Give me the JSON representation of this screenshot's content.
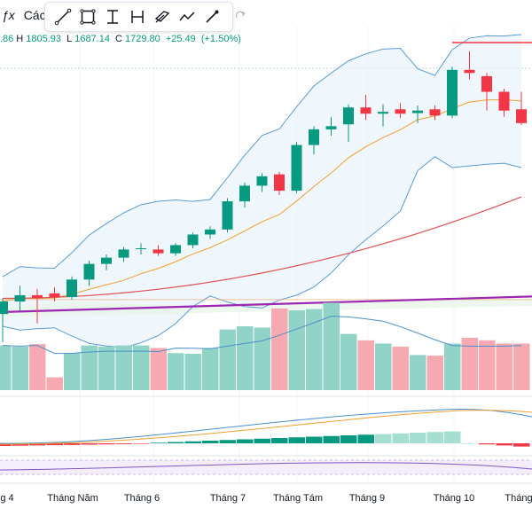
{
  "header": {
    "fx_symbol": "ƒx",
    "title_fragment": "Các"
  },
  "toolbar": {
    "tools": [
      {
        "name": "trend-line-icon"
      },
      {
        "name": "rectangle-icon"
      },
      {
        "name": "text-cursor-icon"
      },
      {
        "name": "measure-icon"
      },
      {
        "name": "parallel-channel-icon"
      },
      {
        "name": "path-icon"
      },
      {
        "name": "brush-icon"
      }
    ],
    "redo_icon": "redo-icon"
  },
  "ohlc": {
    "open_partial": ".86",
    "high_label": "H",
    "high": "1805.93",
    "low_label": "L",
    "low": "1687.14",
    "close_label": "C",
    "close": "1729.80",
    "change": "+25.49",
    "change_pct": "(+1.50%)"
  },
  "colors": {
    "up": "#089981",
    "down": "#f23645",
    "vol_up": "#91d3c7",
    "vol_down": "#f7a9b1",
    "bb_line": "#5b9bd5",
    "bb_fill": "#e8f2fb",
    "ma_short": "#f0a030",
    "ma_mid": "#e05252",
    "ma_long": "#9c27b0",
    "vol_ma": "#4a90c8"
  },
  "x_axis": {
    "months": [
      "g 4",
      "Tháng Năm",
      "Tháng 6",
      "Tháng 7",
      "Tháng Tám",
      "Tháng 9",
      "Tháng 10",
      "Tháng"
    ]
  },
  "chart_data": {
    "type": "candlestick",
    "candles": [
      {
        "o": 1385,
        "h": 1410,
        "l": 1340,
        "c": 1405,
        "v": 70
      },
      {
        "o": 1405,
        "h": 1430,
        "l": 1390,
        "c": 1415,
        "v": 68
      },
      {
        "o": 1415,
        "h": 1425,
        "l": 1370,
        "c": 1410,
        "v": 72
      },
      {
        "o": 1418,
        "h": 1428,
        "l": 1405,
        "c": 1412,
        "v": 20
      },
      {
        "o": 1412,
        "h": 1445,
        "l": 1408,
        "c": 1440,
        "v": 58
      },
      {
        "o": 1440,
        "h": 1470,
        "l": 1430,
        "c": 1465,
        "v": 70
      },
      {
        "o": 1465,
        "h": 1480,
        "l": 1455,
        "c": 1475,
        "v": 68
      },
      {
        "o": 1475,
        "h": 1492,
        "l": 1468,
        "c": 1488,
        "v": 70
      },
      {
        "o": 1490,
        "h": 1498,
        "l": 1480,
        "c": 1490,
        "v": 70
      },
      {
        "o": 1488,
        "h": 1495,
        "l": 1478,
        "c": 1482,
        "v": 66
      },
      {
        "o": 1482,
        "h": 1498,
        "l": 1478,
        "c": 1495,
        "v": 58
      },
      {
        "o": 1495,
        "h": 1515,
        "l": 1490,
        "c": 1512,
        "v": 57
      },
      {
        "o": 1512,
        "h": 1525,
        "l": 1505,
        "c": 1520,
        "v": 66
      },
      {
        "o": 1520,
        "h": 1570,
        "l": 1515,
        "c": 1565,
        "v": 95
      },
      {
        "o": 1565,
        "h": 1595,
        "l": 1555,
        "c": 1590,
        "v": 100
      },
      {
        "o": 1590,
        "h": 1610,
        "l": 1580,
        "c": 1605,
        "v": 98
      },
      {
        "o": 1608,
        "h": 1612,
        "l": 1575,
        "c": 1582,
        "v": 128
      },
      {
        "o": 1582,
        "h": 1660,
        "l": 1578,
        "c": 1655,
        "v": 125
      },
      {
        "o": 1655,
        "h": 1685,
        "l": 1640,
        "c": 1680,
        "v": 127
      },
      {
        "o": 1680,
        "h": 1700,
        "l": 1670,
        "c": 1685,
        "v": 137
      },
      {
        "o": 1688,
        "h": 1720,
        "l": 1660,
        "c": 1715,
        "v": 88
      },
      {
        "o": 1715,
        "h": 1735,
        "l": 1695,
        "c": 1705,
        "v": 78
      },
      {
        "o": 1705,
        "h": 1720,
        "l": 1685,
        "c": 1708,
        "v": 73
      },
      {
        "o": 1712,
        "h": 1722,
        "l": 1698,
        "c": 1705,
        "v": 68
      },
      {
        "o": 1706,
        "h": 1718,
        "l": 1690,
        "c": 1710,
        "v": 55
      },
      {
        "o": 1712,
        "h": 1718,
        "l": 1695,
        "c": 1702,
        "v": 54
      },
      {
        "o": 1702,
        "h": 1780,
        "l": 1698,
        "c": 1775,
        "v": 73
      },
      {
        "o": 1775,
        "h": 1805,
        "l": 1760,
        "c": 1770,
        "v": 82
      },
      {
        "o": 1765,
        "h": 1770,
        "l": 1710,
        "c": 1740,
        "v": 78
      },
      {
        "o": 1740,
        "h": 1745,
        "l": 1700,
        "c": 1710,
        "v": 73
      },
      {
        "o": 1712,
        "h": 1740,
        "l": 1687,
        "c": 1690,
        "v": 73
      }
    ],
    "price_range": [
      1320,
      1830
    ]
  }
}
